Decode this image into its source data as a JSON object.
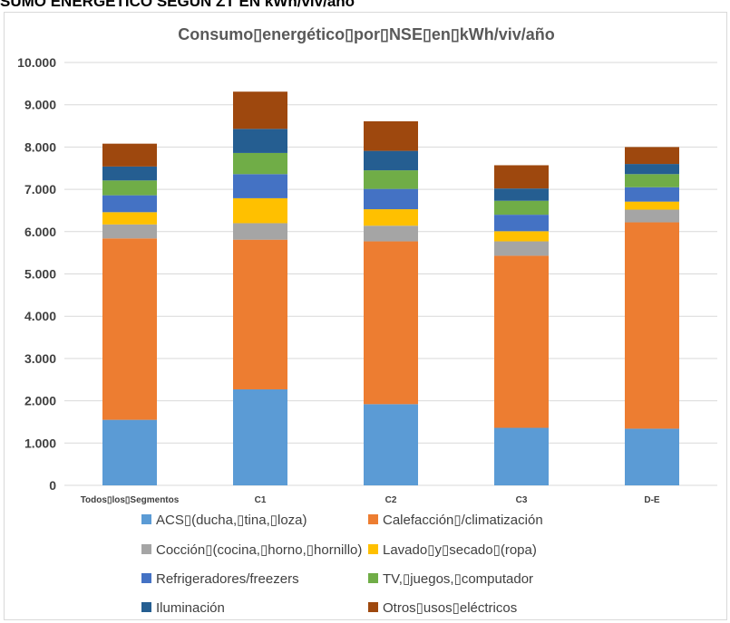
{
  "page": {
    "heading": "SUMO ENERGÉTICO SEGÚN ZT EN kWh/viv/año"
  },
  "colors": {
    "acs": "#5b9bd5",
    "calefaccion": "#ed7d31",
    "coccion": "#a5a5a5",
    "lavado": "#ffc000",
    "refrigeradores": "#4472c4",
    "tv": "#70ad47",
    "iluminacion": "#255e91",
    "otros": "#9e480e",
    "grid": "#d9d9d9",
    "text": "#404040"
  },
  "chart_data": {
    "type": "bar",
    "stacked": true,
    "title": "Consumo▯energético▯por▯NSE▯en▯kWh/viv/año",
    "xlabel": "",
    "ylabel": "",
    "ylim": [
      0,
      10000
    ],
    "yticks": [
      0,
      1000,
      2000,
      3000,
      4000,
      5000,
      6000,
      7000,
      8000,
      9000,
      10000
    ],
    "ytick_labels": [
      "0",
      "1.000",
      "2.000",
      "3.000",
      "4.000",
      "5.000",
      "6.000",
      "7.000",
      "8.000",
      "9.000",
      "10.000"
    ],
    "grid": true,
    "legend_position": "bottom",
    "categories": [
      "Todos▯los▯Segmentos",
      "C1",
      "C2",
      "C3",
      "D-E"
    ],
    "series": [
      {
        "name": "ACS▯(ducha,▯tina,▯loza)",
        "color_key": "acs",
        "values": [
          1550,
          2270,
          1920,
          1360,
          1340
        ]
      },
      {
        "name": "Calefacción▯/climatización",
        "color_key": "calefaccion",
        "values": [
          4290,
          3540,
          3850,
          4070,
          4880
        ]
      },
      {
        "name": "Cocción▯(cocina,▯horno,▯hornillo)",
        "color_key": "coccion",
        "values": [
          330,
          390,
          370,
          340,
          300
        ]
      },
      {
        "name": "Lavado▯y▯secado▯(ropa)",
        "color_key": "lavado",
        "values": [
          290,
          590,
          390,
          240,
          190
        ]
      },
      {
        "name": "Refrigeradores/freezers",
        "color_key": "refrigeradores",
        "values": [
          400,
          570,
          480,
          390,
          340
        ]
      },
      {
        "name": "TV,▯juegos,▯computador",
        "color_key": "tv",
        "values": [
          350,
          500,
          440,
          330,
          310
        ]
      },
      {
        "name": "Iluminación",
        "color_key": "iluminacion",
        "values": [
          330,
          570,
          460,
          290,
          240
        ]
      },
      {
        "name": "Otros▯usos▯eléctricos",
        "color_key": "otros",
        "values": [
          540,
          880,
          700,
          550,
          400
        ]
      }
    ]
  }
}
